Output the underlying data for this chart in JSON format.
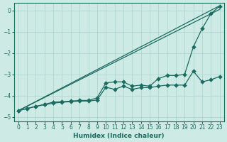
{
  "xlabel": "Humidex (Indice chaleur)",
  "background_color": "#ceeae5",
  "grid_color": "#a8d4cc",
  "line_color": "#1a6b60",
  "x_values": [
    0,
    1,
    2,
    3,
    4,
    5,
    6,
    7,
    8,
    9,
    10,
    11,
    12,
    13,
    14,
    15,
    16,
    17,
    18,
    19,
    20,
    21,
    22,
    23
  ],
  "straight_line1": [
    -4.7,
    0.05
  ],
  "straight_line2": [
    -4.7,
    0.22
  ],
  "wavy_line1_y": [
    -4.7,
    -4.6,
    -4.5,
    -4.42,
    -4.35,
    -4.3,
    -4.28,
    -4.25,
    -4.25,
    -4.2,
    -3.6,
    -3.7,
    -3.55,
    -3.7,
    -3.62,
    -3.62,
    -3.55,
    -3.5,
    -3.5,
    -3.5,
    -2.85,
    -3.35,
    -3.25,
    -3.1
  ],
  "wavy_line2_y": [
    -4.7,
    -4.6,
    -4.5,
    -4.4,
    -4.3,
    -4.28,
    -4.25,
    -4.22,
    -4.22,
    -4.1,
    -3.4,
    -3.35,
    -3.35,
    -3.55,
    -3.5,
    -3.55,
    -3.2,
    -3.05,
    -3.05,
    -3.0,
    -1.7,
    -0.85,
    -0.15,
    0.2
  ],
  "ylim": [
    -5.2,
    0.35
  ],
  "xlim": [
    -0.5,
    23.5
  ],
  "yticks": [
    0,
    -1,
    -2,
    -3,
    -4,
    -5
  ],
  "xticks": [
    0,
    1,
    2,
    3,
    4,
    5,
    6,
    7,
    8,
    9,
    10,
    11,
    12,
    13,
    14,
    15,
    16,
    17,
    18,
    19,
    20,
    21,
    22,
    23
  ],
  "xlabel_fontsize": 6.5,
  "tick_fontsize": 5.5,
  "linewidth": 0.9,
  "markersize": 3.0
}
